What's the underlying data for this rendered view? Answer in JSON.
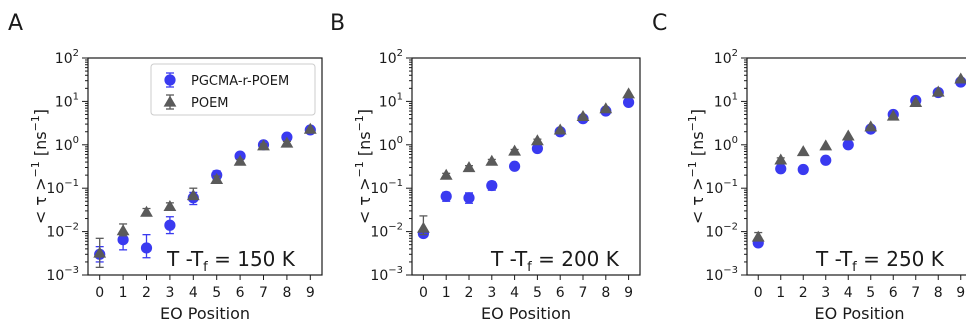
{
  "chart_data": [
    {
      "type": "scatter",
      "panel_label": "A",
      "xlabel": "EO Position",
      "ylabel": "< τ >",
      "ylabel_exponent": "−1",
      "ylabel_unit_prefix": "[ns",
      "ylabel_unit_exponent": "−1",
      "ylabel_unit_suffix": "]",
      "x_ticks": [
        0,
        1,
        2,
        3,
        4,
        5,
        6,
        7,
        8,
        9
      ],
      "y_scale": "log",
      "ylim": [
        0.001,
        100
      ],
      "y_ticks": [
        {
          "base": "10",
          "exp": "-3"
        },
        {
          "base": "10",
          "exp": "-2"
        },
        {
          "base": "10",
          "exp": "-1"
        },
        {
          "base": "10",
          "exp": "0"
        },
        {
          "base": "10",
          "exp": "1"
        },
        {
          "base": "10",
          "exp": "2"
        }
      ],
      "annotation": {
        "prefix": "T -T",
        "sub": "f",
        "suffix": " = 150 K"
      },
      "legend": {
        "position": "top-right",
        "entries": [
          "PGCMA-r-POEM",
          "POEM"
        ]
      },
      "series": [
        {
          "name": "PGCMA-r-POEM",
          "marker": "circle",
          "color": "#3a3af0",
          "x": [
            0,
            1,
            2,
            3,
            4,
            5,
            6,
            7,
            8,
            9
          ],
          "y": [
            0.003,
            0.0065,
            0.0042,
            0.014,
            0.06,
            0.2,
            0.55,
            1.0,
            1.5,
            2.2
          ],
          "err_low": [
            0.002,
            0.0038,
            0.0025,
            0.009,
            0.042,
            0.16,
            0.47,
            0.9,
            1.35,
            2.0
          ],
          "err_high": [
            0.0045,
            0.009,
            0.0085,
            0.022,
            0.08,
            0.25,
            0.62,
            1.12,
            1.68,
            2.45
          ]
        },
        {
          "name": "POEM",
          "marker": "triangle",
          "color": "#5a5a5a",
          "x": [
            0,
            1,
            2,
            3,
            4,
            5,
            6,
            7,
            8,
            9
          ],
          "y": [
            0.0032,
            0.0105,
            0.028,
            0.038,
            0.068,
            0.16,
            0.42,
            0.95,
            1.1,
            2.3
          ],
          "err_low": [
            0.0015,
            0.008,
            0.023,
            0.031,
            0.055,
            0.14,
            0.39,
            0.88,
            1.02,
            2.15
          ],
          "err_high": [
            0.007,
            0.015,
            0.034,
            0.046,
            0.1,
            0.19,
            0.46,
            1.05,
            1.2,
            2.5
          ]
        }
      ]
    },
    {
      "type": "scatter",
      "panel_label": "B",
      "xlabel": "EO Position",
      "ylabel": "< τ >",
      "ylabel_exponent": "−1",
      "ylabel_unit_prefix": "[ns",
      "ylabel_unit_exponent": "−1",
      "ylabel_unit_suffix": "]",
      "x_ticks": [
        0,
        1,
        2,
        3,
        4,
        5,
        6,
        7,
        8,
        9
      ],
      "y_scale": "log",
      "ylim": [
        0.001,
        100
      ],
      "y_ticks": [
        {
          "base": "10",
          "exp": "-3"
        },
        {
          "base": "10",
          "exp": "-2"
        },
        {
          "base": "10",
          "exp": "-1"
        },
        {
          "base": "10",
          "exp": "0"
        },
        {
          "base": "10",
          "exp": "1"
        },
        {
          "base": "10",
          "exp": "2"
        }
      ],
      "annotation": {
        "prefix": "T -T",
        "sub": "f",
        "suffix": " = 200 K"
      },
      "series": [
        {
          "name": "PGCMA-r-POEM",
          "marker": "circle",
          "color": "#3a3af0",
          "x": [
            0,
            1,
            2,
            3,
            4,
            5,
            6,
            7,
            8,
            9
          ],
          "y": [
            0.009,
            0.065,
            0.06,
            0.115,
            0.32,
            0.82,
            2.0,
            4.0,
            6.0,
            9.5
          ],
          "err_low": [
            0.0075,
            0.05,
            0.045,
            0.09,
            0.27,
            0.75,
            1.85,
            3.7,
            5.6,
            8.9
          ],
          "err_high": [
            0.011,
            0.08,
            0.078,
            0.14,
            0.38,
            0.9,
            2.2,
            4.4,
            6.5,
            10.2
          ]
        },
        {
          "name": "POEM",
          "marker": "triangle",
          "color": "#5a5a5a",
          "x": [
            0,
            1,
            2,
            3,
            4,
            5,
            6,
            7,
            8,
            9
          ],
          "y": [
            0.012,
            0.2,
            0.3,
            0.42,
            0.72,
            1.25,
            2.2,
            4.5,
            6.8,
            15.0
          ],
          "err_low": [
            0.0085,
            0.18,
            0.27,
            0.38,
            0.66,
            1.15,
            2.05,
            4.2,
            6.4,
            14.0
          ],
          "err_high": [
            0.023,
            0.22,
            0.33,
            0.46,
            0.78,
            1.35,
            2.35,
            4.8,
            7.2,
            16.2
          ]
        }
      ]
    },
    {
      "type": "scatter",
      "panel_label": "C",
      "xlabel": "EO Position",
      "ylabel": "< τ >",
      "ylabel_exponent": "−1",
      "ylabel_unit_prefix": "[ns",
      "ylabel_unit_exponent": "−1",
      "ylabel_unit_suffix": "]",
      "x_ticks": [
        0,
        1,
        2,
        3,
        4,
        5,
        6,
        7,
        8,
        9
      ],
      "y_scale": "log",
      "ylim": [
        0.001,
        100
      ],
      "y_ticks": [
        {
          "base": "10",
          "exp": "-3"
        },
        {
          "base": "10",
          "exp": "-2"
        },
        {
          "base": "10",
          "exp": "-1"
        },
        {
          "base": "10",
          "exp": "0"
        },
        {
          "base": "10",
          "exp": "1"
        },
        {
          "base": "10",
          "exp": "2"
        }
      ],
      "annotation": {
        "prefix": "T -T",
        "sub": "f",
        "suffix": " = 250 K"
      },
      "series": [
        {
          "name": "PGCMA-r-POEM",
          "marker": "circle",
          "color": "#3a3af0",
          "x": [
            0,
            1,
            2,
            3,
            4,
            5,
            6,
            7,
            8,
            9
          ],
          "y": [
            0.0055,
            0.28,
            0.27,
            0.44,
            1.0,
            2.3,
            5.0,
            10.5,
            16.0,
            28.0
          ],
          "err_low": [
            0.0048,
            0.24,
            0.24,
            0.4,
            0.9,
            2.15,
            4.7,
            9.9,
            15.1,
            26.5
          ],
          "err_high": [
            0.0065,
            0.32,
            0.3,
            0.5,
            1.1,
            2.5,
            5.4,
            11.2,
            17.0,
            29.5
          ]
        },
        {
          "name": "POEM",
          "marker": "triangle",
          "color": "#5a5a5a",
          "x": [
            0,
            1,
            2,
            3,
            4,
            5,
            6,
            7,
            8,
            9
          ],
          "y": [
            0.0075,
            0.45,
            0.7,
            0.95,
            1.6,
            2.6,
            4.6,
            9.5,
            16.5,
            33.0
          ],
          "err_low": [
            0.0062,
            0.4,
            0.65,
            0.88,
            1.5,
            2.45,
            4.35,
            9.0,
            15.6,
            31.0
          ],
          "err_high": [
            0.0095,
            0.5,
            0.76,
            1.02,
            1.72,
            2.8,
            4.9,
            10.1,
            17.5,
            35.0
          ]
        }
      ]
    }
  ]
}
